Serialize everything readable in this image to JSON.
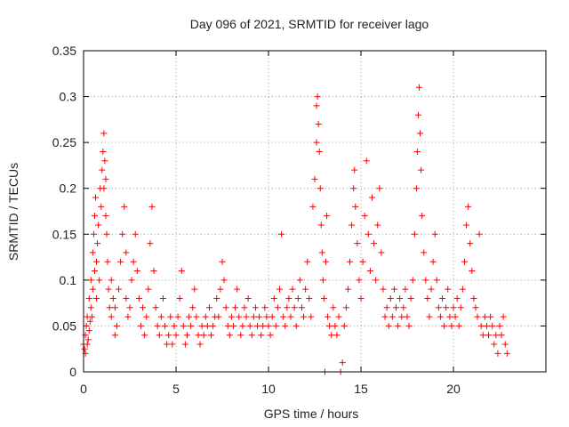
{
  "chart_data": {
    "type": "scatter",
    "title": "Day 096 of 2021, SRMTID for receiver lago",
    "xlabel": "GPS time / hours",
    "ylabel": "SRMTID / TECUs",
    "xlim": [
      0,
      25
    ],
    "ylim": [
      0,
      0.35
    ],
    "x_ticks": [
      "0",
      "5",
      "10",
      "15",
      "20"
    ],
    "x_tick_values": [
      0,
      5,
      10,
      15,
      20
    ],
    "y_ticks": [
      "0",
      "0.05",
      "0.1",
      "0.15",
      "0.2",
      "0.25",
      "0.3",
      "0.35"
    ],
    "y_tick_values": [
      0,
      0.05,
      0.1,
      0.15,
      0.2,
      0.25,
      0.3,
      0.35
    ],
    "grid": true,
    "marker": "+",
    "color": "#ff0000",
    "series": [
      {
        "name": "SRMTID",
        "points": [
          [
            0.0,
            0.03
          ],
          [
            0.05,
            0.025
          ],
          [
            0.1,
            0.04
          ],
          [
            0.1,
            0.02
          ],
          [
            0.15,
            0.05
          ],
          [
            0.2,
            0.03
          ],
          [
            0.2,
            0.06
          ],
          [
            0.25,
            0.035
          ],
          [
            0.3,
            0.045
          ],
          [
            0.3,
            0.08
          ],
          [
            0.35,
            0.055
          ],
          [
            0.4,
            0.07
          ],
          [
            0.4,
            0.1
          ],
          [
            0.45,
            0.06
          ],
          [
            0.5,
            0.13
          ],
          [
            0.5,
            0.09
          ],
          [
            0.55,
            0.15
          ],
          [
            0.6,
            0.17
          ],
          [
            0.6,
            0.11
          ],
          [
            0.65,
            0.19
          ],
          [
            0.7,
            0.12
          ],
          [
            0.7,
            0.08
          ],
          [
            0.75,
            0.14
          ],
          [
            0.8,
            0.16
          ],
          [
            0.85,
            0.1
          ],
          [
            0.9,
            0.2
          ],
          [
            0.95,
            0.18
          ],
          [
            1.0,
            0.22
          ],
          [
            1.05,
            0.24
          ],
          [
            1.1,
            0.26
          ],
          [
            1.1,
            0.2
          ],
          [
            1.15,
            0.23
          ],
          [
            1.2,
            0.21
          ],
          [
            1.2,
            0.17
          ],
          [
            1.25,
            0.15
          ],
          [
            1.3,
            0.12
          ],
          [
            1.35,
            0.09
          ],
          [
            1.4,
            0.07
          ],
          [
            1.5,
            0.06
          ],
          [
            1.5,
            0.1
          ],
          [
            1.6,
            0.08
          ],
          [
            1.7,
            0.04
          ],
          [
            1.7,
            0.07
          ],
          [
            1.8,
            0.05
          ],
          [
            1.9,
            0.09
          ],
          [
            2.0,
            0.12
          ],
          [
            2.1,
            0.15
          ],
          [
            2.2,
            0.18
          ],
          [
            2.3,
            0.13
          ],
          [
            2.3,
            0.08
          ],
          [
            2.4,
            0.06
          ],
          [
            2.5,
            0.07
          ],
          [
            2.6,
            0.1
          ],
          [
            2.7,
            0.12
          ],
          [
            2.8,
            0.15
          ],
          [
            2.9,
            0.11
          ],
          [
            3.0,
            0.08
          ],
          [
            3.1,
            0.05
          ],
          [
            3.2,
            0.07
          ],
          [
            3.3,
            0.04
          ],
          [
            3.4,
            0.06
          ],
          [
            3.5,
            0.09
          ],
          [
            3.6,
            0.14
          ],
          [
            3.7,
            0.18
          ],
          [
            3.8,
            0.11
          ],
          [
            3.9,
            0.07
          ],
          [
            4.0,
            0.05
          ],
          [
            4.1,
            0.04
          ],
          [
            4.2,
            0.06
          ],
          [
            4.3,
            0.08
          ],
          [
            4.4,
            0.05
          ],
          [
            4.5,
            0.03
          ],
          [
            4.6,
            0.04
          ],
          [
            4.7,
            0.06
          ],
          [
            4.8,
            0.03
          ],
          [
            4.9,
            0.05
          ],
          [
            5.0,
            0.04
          ],
          [
            5.1,
            0.06
          ],
          [
            5.2,
            0.08
          ],
          [
            5.3,
            0.11
          ],
          [
            5.4,
            0.05
          ],
          [
            5.5,
            0.03
          ],
          [
            5.6,
            0.04
          ],
          [
            5.7,
            0.06
          ],
          [
            5.8,
            0.05
          ],
          [
            5.9,
            0.07
          ],
          [
            6.0,
            0.09
          ],
          [
            6.1,
            0.06
          ],
          [
            6.2,
            0.04
          ],
          [
            6.3,
            0.03
          ],
          [
            6.4,
            0.05
          ],
          [
            6.5,
            0.04
          ],
          [
            6.6,
            0.06
          ],
          [
            6.7,
            0.05
          ],
          [
            6.8,
            0.07
          ],
          [
            6.9,
            0.04
          ],
          [
            7.0,
            0.05
          ],
          [
            7.1,
            0.06
          ],
          [
            7.2,
            0.08
          ],
          [
            7.3,
            0.06
          ],
          [
            7.4,
            0.09
          ],
          [
            7.5,
            0.12
          ],
          [
            7.6,
            0.1
          ],
          [
            7.7,
            0.07
          ],
          [
            7.8,
            0.05
          ],
          [
            7.9,
            0.04
          ],
          [
            8.0,
            0.06
          ],
          [
            8.1,
            0.05
          ],
          [
            8.2,
            0.07
          ],
          [
            8.3,
            0.09
          ],
          [
            8.4,
            0.06
          ],
          [
            8.5,
            0.04
          ],
          [
            8.6,
            0.05
          ],
          [
            8.7,
            0.07
          ],
          [
            8.8,
            0.06
          ],
          [
            8.9,
            0.08
          ],
          [
            9.0,
            0.05
          ],
          [
            9.1,
            0.04
          ],
          [
            9.2,
            0.06
          ],
          [
            9.3,
            0.07
          ],
          [
            9.4,
            0.05
          ],
          [
            9.5,
            0.06
          ],
          [
            9.6,
            0.04
          ],
          [
            9.7,
            0.05
          ],
          [
            9.8,
            0.07
          ],
          [
            9.9,
            0.06
          ],
          [
            10.0,
            0.05
          ],
          [
            10.1,
            0.04
          ],
          [
            10.2,
            0.06
          ],
          [
            10.3,
            0.08
          ],
          [
            10.4,
            0.05
          ],
          [
            10.5,
            0.07
          ],
          [
            10.6,
            0.09
          ],
          [
            10.7,
            0.15
          ],
          [
            10.8,
            0.06
          ],
          [
            10.9,
            0.05
          ],
          [
            11.0,
            0.07
          ],
          [
            11.1,
            0.08
          ],
          [
            11.2,
            0.06
          ],
          [
            11.3,
            0.09
          ],
          [
            11.4,
            0.07
          ],
          [
            11.5,
            0.05
          ],
          [
            11.6,
            0.08
          ],
          [
            11.7,
            0.1
          ],
          [
            11.8,
            0.07
          ],
          [
            11.9,
            0.06
          ],
          [
            12.0,
            0.09
          ],
          [
            12.1,
            0.12
          ],
          [
            12.2,
            0.08
          ],
          [
            12.3,
            0.06
          ],
          [
            12.4,
            0.18
          ],
          [
            12.5,
            0.21
          ],
          [
            12.6,
            0.25
          ],
          [
            12.6,
            0.29
          ],
          [
            12.65,
            0.3
          ],
          [
            12.7,
            0.27
          ],
          [
            12.75,
            0.24
          ],
          [
            12.8,
            0.2
          ],
          [
            12.85,
            0.16
          ],
          [
            12.9,
            0.13
          ],
          [
            12.95,
            0.1
          ],
          [
            13.0,
            0.08
          ],
          [
            13.05,
            0.0
          ],
          [
            13.1,
            0.12
          ],
          [
            13.15,
            0.17
          ],
          [
            13.2,
            0.06
          ],
          [
            13.3,
            0.05
          ],
          [
            13.4,
            0.04
          ],
          [
            13.5,
            0.07
          ],
          [
            13.6,
            0.05
          ],
          [
            13.7,
            0.04
          ],
          [
            13.8,
            0.06
          ],
          [
            13.9,
            0.0
          ],
          [
            14.0,
            0.01
          ],
          [
            14.1,
            0.05
          ],
          [
            14.2,
            0.07
          ],
          [
            14.3,
            0.09
          ],
          [
            14.4,
            0.12
          ],
          [
            14.5,
            0.16
          ],
          [
            14.6,
            0.2
          ],
          [
            14.65,
            0.22
          ],
          [
            14.7,
            0.18
          ],
          [
            14.8,
            0.14
          ],
          [
            14.9,
            0.1
          ],
          [
            15.0,
            0.08
          ],
          [
            15.1,
            0.12
          ],
          [
            15.2,
            0.17
          ],
          [
            15.3,
            0.23
          ],
          [
            15.4,
            0.15
          ],
          [
            15.5,
            0.11
          ],
          [
            15.6,
            0.19
          ],
          [
            15.7,
            0.14
          ],
          [
            15.8,
            0.1
          ],
          [
            15.9,
            0.16
          ],
          [
            16.0,
            0.2
          ],
          [
            16.1,
            0.13
          ],
          [
            16.2,
            0.09
          ],
          [
            16.3,
            0.06
          ],
          [
            16.4,
            0.07
          ],
          [
            16.5,
            0.05
          ],
          [
            16.6,
            0.08
          ],
          [
            16.7,
            0.06
          ],
          [
            16.8,
            0.09
          ],
          [
            16.9,
            0.07
          ],
          [
            17.0,
            0.05
          ],
          [
            17.1,
            0.08
          ],
          [
            17.2,
            0.06
          ],
          [
            17.3,
            0.07
          ],
          [
            17.4,
            0.09
          ],
          [
            17.5,
            0.06
          ],
          [
            17.6,
            0.05
          ],
          [
            17.7,
            0.08
          ],
          [
            17.8,
            0.1
          ],
          [
            17.9,
            0.15
          ],
          [
            18.0,
            0.2
          ],
          [
            18.05,
            0.24
          ],
          [
            18.1,
            0.28
          ],
          [
            18.15,
            0.31
          ],
          [
            18.2,
            0.26
          ],
          [
            18.25,
            0.22
          ],
          [
            18.3,
            0.17
          ],
          [
            18.4,
            0.13
          ],
          [
            18.5,
            0.1
          ],
          [
            18.6,
            0.08
          ],
          [
            18.7,
            0.06
          ],
          [
            18.8,
            0.09
          ],
          [
            18.9,
            0.12
          ],
          [
            19.0,
            0.15
          ],
          [
            19.1,
            0.1
          ],
          [
            19.2,
            0.07
          ],
          [
            19.3,
            0.06
          ],
          [
            19.4,
            0.08
          ],
          [
            19.5,
            0.05
          ],
          [
            19.6,
            0.07
          ],
          [
            19.7,
            0.09
          ],
          [
            19.8,
            0.06
          ],
          [
            19.9,
            0.05
          ],
          [
            20.0,
            0.07
          ],
          [
            20.1,
            0.06
          ],
          [
            20.2,
            0.08
          ],
          [
            20.3,
            0.05
          ],
          [
            20.4,
            0.07
          ],
          [
            20.5,
            0.09
          ],
          [
            20.6,
            0.12
          ],
          [
            20.7,
            0.16
          ],
          [
            20.8,
            0.18
          ],
          [
            20.9,
            0.14
          ],
          [
            21.0,
            0.11
          ],
          [
            21.1,
            0.08
          ],
          [
            21.2,
            0.07
          ],
          [
            21.3,
            0.06
          ],
          [
            21.4,
            0.15
          ],
          [
            21.5,
            0.05
          ],
          [
            21.6,
            0.04
          ],
          [
            21.7,
            0.06
          ],
          [
            21.8,
            0.05
          ],
          [
            21.9,
            0.04
          ],
          [
            22.0,
            0.06
          ],
          [
            22.1,
            0.05
          ],
          [
            22.2,
            0.03
          ],
          [
            22.3,
            0.04
          ],
          [
            22.4,
            0.02
          ],
          [
            22.5,
            0.05
          ],
          [
            22.6,
            0.04
          ],
          [
            22.7,
            0.06
          ],
          [
            22.8,
            0.03
          ],
          [
            22.9,
            0.02
          ]
        ]
      }
    ]
  }
}
